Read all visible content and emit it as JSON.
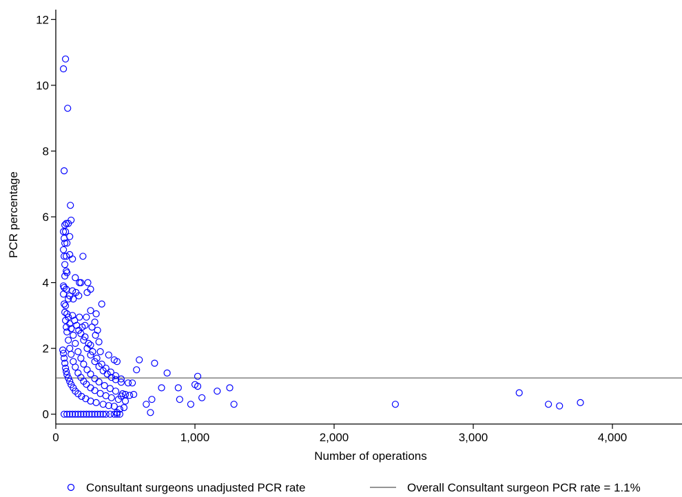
{
  "chart_data": {
    "type": "scatter",
    "title": "",
    "xlabel": "Number of operations",
    "ylabel": "PCR percentage",
    "xlim": [
      0,
      4500
    ],
    "ylim": [
      -0.3,
      12.3
    ],
    "x_ticks": [
      0,
      1000,
      2000,
      3000,
      4000
    ],
    "x_tick_labels": [
      "0",
      "1,000",
      "2,000",
      "3,000",
      "4,000"
    ],
    "y_ticks": [
      0,
      2,
      4,
      6,
      8,
      10,
      12
    ],
    "y_tick_labels": [
      "0",
      "2",
      "4",
      "6",
      "8",
      "10",
      "12"
    ],
    "grid": false,
    "legend_position": "bottom",
    "colors": {
      "points": "#0000ff",
      "reference_line": "#555555",
      "axis": "#000000"
    },
    "reference_line": {
      "y": 1.1,
      "name": "Overall Consultant surgeon PCR rate = 1.1%"
    },
    "series": [
      {
        "name": "Consultant surgeons unadjusted PCR rate",
        "points": [
          [
            55,
            10.5
          ],
          [
            70,
            10.8
          ],
          [
            85,
            9.3
          ],
          [
            60,
            7.4
          ],
          [
            105,
            6.35
          ],
          [
            110,
            5.9
          ],
          [
            75,
            5.8
          ],
          [
            90,
            5.8
          ],
          [
            65,
            5.75
          ],
          [
            55,
            5.55
          ],
          [
            70,
            5.55
          ],
          [
            100,
            5.4
          ],
          [
            60,
            5.35
          ],
          [
            65,
            5.2
          ],
          [
            80,
            5.2
          ],
          [
            55,
            5.0
          ],
          [
            100,
            4.85
          ],
          [
            60,
            4.8
          ],
          [
            195,
            4.8
          ],
          [
            75,
            4.8
          ],
          [
            120,
            4.72
          ],
          [
            65,
            4.55
          ],
          [
            75,
            4.35
          ],
          [
            65,
            4.2
          ],
          [
            80,
            4.3
          ],
          [
            140,
            4.15
          ],
          [
            180,
            4.0
          ],
          [
            170,
            4.0
          ],
          [
            230,
            4.0
          ],
          [
            55,
            3.9
          ],
          [
            60,
            3.85
          ],
          [
            250,
            3.8
          ],
          [
            75,
            3.8
          ],
          [
            120,
            3.75
          ],
          [
            225,
            3.7
          ],
          [
            145,
            3.7
          ],
          [
            165,
            3.6
          ],
          [
            100,
            3.6
          ],
          [
            90,
            3.5
          ],
          [
            125,
            3.5
          ],
          [
            330,
            3.35
          ],
          [
            250,
            3.15
          ],
          [
            290,
            3.05
          ],
          [
            220,
            2.95
          ],
          [
            280,
            2.8
          ],
          [
            210,
            2.7
          ],
          [
            260,
            2.65
          ],
          [
            300,
            2.55
          ],
          [
            285,
            2.4
          ],
          [
            310,
            2.2
          ],
          [
            250,
            2.1
          ],
          [
            320,
            1.9
          ],
          [
            380,
            1.8
          ],
          [
            420,
            1.65
          ],
          [
            440,
            1.6
          ],
          [
            600,
            1.65
          ],
          [
            580,
            1.35
          ],
          [
            710,
            1.55
          ],
          [
            800,
            1.25
          ],
          [
            1020,
            1.15
          ],
          [
            1000,
            0.9
          ],
          [
            1020,
            0.85
          ],
          [
            550,
            0.95
          ],
          [
            520,
            0.95
          ],
          [
            760,
            0.8
          ],
          [
            880,
            0.8
          ],
          [
            1160,
            0.7
          ],
          [
            1250,
            0.8
          ],
          [
            1280,
            0.3
          ],
          [
            1050,
            0.5
          ],
          [
            890,
            0.45
          ],
          [
            970,
            0.3
          ],
          [
            690,
            0.45
          ],
          [
            650,
            0.3
          ],
          [
            680,
            0.05
          ],
          [
            560,
            0.6
          ],
          [
            500,
            0.6
          ],
          [
            470,
            0.55
          ],
          [
            490,
            0.2
          ],
          [
            460,
            0.15
          ],
          [
            440,
            0.05
          ],
          [
            2440,
            0.3
          ],
          [
            3330,
            0.65
          ],
          [
            3540,
            0.3
          ],
          [
            3620,
            0.25
          ],
          [
            3770,
            0.35
          ],
          [
            60,
            0
          ],
          [
            80,
            0
          ],
          [
            100,
            0
          ],
          [
            120,
            0
          ],
          [
            140,
            0
          ],
          [
            160,
            0
          ],
          [
            180,
            0
          ],
          [
            200,
            0
          ],
          [
            220,
            0
          ],
          [
            240,
            0
          ],
          [
            260,
            0
          ],
          [
            280,
            0
          ],
          [
            300,
            0
          ],
          [
            320,
            0
          ],
          [
            340,
            0
          ],
          [
            360,
            0
          ],
          [
            390,
            0
          ],
          [
            420,
            0
          ],
          [
            440,
            0
          ],
          [
            460,
            0
          ],
          [
            50,
            1.95
          ],
          [
            55,
            1.85
          ],
          [
            60,
            1.7
          ],
          [
            65,
            1.55
          ],
          [
            70,
            1.4
          ],
          [
            75,
            1.3
          ],
          [
            80,
            1.2
          ],
          [
            90,
            1.1
          ],
          [
            100,
            1.0
          ],
          [
            110,
            0.9
          ],
          [
            125,
            0.8
          ],
          [
            140,
            0.7
          ],
          [
            160,
            0.62
          ],
          [
            185,
            0.54
          ],
          [
            215,
            0.47
          ],
          [
            250,
            0.4
          ],
          [
            290,
            0.35
          ],
          [
            340,
            0.3
          ],
          [
            380,
            0.26
          ],
          [
            420,
            0.24
          ],
          [
            55,
            3.65
          ],
          [
            60,
            3.35
          ],
          [
            65,
            3.1
          ],
          [
            70,
            2.85
          ],
          [
            75,
            2.65
          ],
          [
            80,
            2.5
          ],
          [
            90,
            2.25
          ],
          [
            100,
            2.0
          ],
          [
            110,
            1.82
          ],
          [
            125,
            1.6
          ],
          [
            140,
            1.43
          ],
          [
            160,
            1.25
          ],
          [
            180,
            1.12
          ],
          [
            200,
            1.0
          ],
          [
            220,
            0.91
          ],
          [
            250,
            0.8
          ],
          [
            280,
            0.72
          ],
          [
            320,
            0.63
          ],
          [
            360,
            0.56
          ],
          [
            400,
            0.5
          ],
          [
            450,
            0.45
          ],
          [
            500,
            0.4
          ],
          [
            70,
            3.3
          ],
          [
            80,
            3.05
          ],
          [
            90,
            2.95
          ],
          [
            100,
            2.75
          ],
          [
            110,
            2.6
          ],
          [
            125,
            2.4
          ],
          [
            140,
            2.15
          ],
          [
            160,
            1.9
          ],
          [
            180,
            1.7
          ],
          [
            200,
            1.52
          ],
          [
            225,
            1.35
          ],
          [
            250,
            1.22
          ],
          [
            280,
            1.08
          ],
          [
            310,
            0.98
          ],
          [
            350,
            0.87
          ],
          [
            390,
            0.78
          ],
          [
            430,
            0.7
          ],
          [
            480,
            0.62
          ],
          [
            530,
            0.57
          ],
          [
            120,
            3.0
          ],
          [
            135,
            2.85
          ],
          [
            150,
            2.7
          ],
          [
            165,
            2.55
          ],
          [
            180,
            2.45
          ],
          [
            200,
            2.25
          ],
          [
            225,
            2.0
          ],
          [
            250,
            1.8
          ],
          [
            280,
            1.6
          ],
          [
            310,
            1.45
          ],
          [
            340,
            1.32
          ],
          [
            370,
            1.22
          ],
          [
            400,
            1.12
          ],
          [
            430,
            1.05
          ],
          [
            470,
            0.97
          ],
          [
            170,
            2.95
          ],
          [
            190,
            2.65
          ],
          [
            210,
            2.35
          ],
          [
            235,
            2.15
          ],
          [
            265,
            1.9
          ],
          [
            295,
            1.7
          ],
          [
            330,
            1.52
          ],
          [
            360,
            1.4
          ],
          [
            395,
            1.28
          ],
          [
            430,
            1.17
          ],
          [
            470,
            1.07
          ]
        ]
      }
    ]
  }
}
